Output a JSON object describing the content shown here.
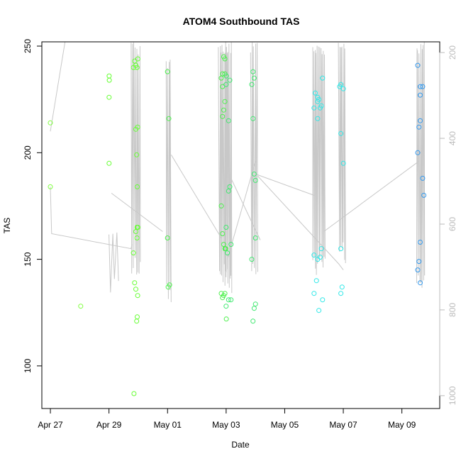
{
  "chart_data": {
    "type": "scatter",
    "title": "ATOM4 Southbound TAS",
    "xlabel": "Date",
    "ylabel": "TAS",
    "x_date_range": [
      "2023-04-26T17:00",
      "2023-05-10T07:00"
    ],
    "x_ticks": [
      {
        "date": "2023-04-27T00:00",
        "label": "Apr 27"
      },
      {
        "date": "2023-04-29T00:00",
        "label": "Apr 29"
      },
      {
        "date": "2023-05-01T00:00",
        "label": "May 01"
      },
      {
        "date": "2023-05-03T00:00",
        "label": "May 03"
      },
      {
        "date": "2023-05-05T00:00",
        "label": "May 05"
      },
      {
        "date": "2023-05-07T00:00",
        "label": "May 07"
      },
      {
        "date": "2023-05-09T00:00",
        "label": "May 09"
      }
    ],
    "ylim": [
      80,
      252
    ],
    "y_ticks": [
      100,
      150,
      200,
      250
    ],
    "secondary_axis": {
      "side": "right",
      "color": "#bbbbbb",
      "range": [
        1030,
        175
      ],
      "ticks": [
        200,
        400,
        600,
        800,
        1000
      ]
    },
    "line_color": "#c8c8c8",
    "point_style": "open-circle",
    "series": [
      {
        "color": "#80ff40",
        "points": [
          [
            "2023-04-27T00:00",
            214
          ],
          [
            "2023-04-27T00:00",
            184
          ],
          [
            "2023-04-28T00:50",
            128
          ]
        ]
      },
      {
        "color": "#66ff33",
        "points": [
          [
            "2023-04-29T00:10",
            236
          ],
          [
            "2023-04-29T00:15",
            234
          ],
          [
            "2023-04-29T00:05",
            226
          ],
          [
            "2023-04-29T00:05",
            195
          ],
          [
            "2023-04-29T20:00",
            240
          ],
          [
            "2023-04-29T21:00",
            243
          ],
          [
            "2023-04-29T22:00",
            241
          ],
          [
            "2023-04-29T23:00",
            240
          ],
          [
            "2023-04-29T23:40",
            244
          ],
          [
            "2023-04-29T22:00",
            211
          ],
          [
            "2023-04-29T23:30",
            212
          ],
          [
            "2023-04-29T22:40",
            199
          ],
          [
            "2023-04-29T23:10",
            184
          ],
          [
            "2023-04-29T22:00",
            163
          ],
          [
            "2023-04-29T23:00",
            165
          ],
          [
            "2023-04-29T23:40",
            165
          ],
          [
            "2023-04-29T23:00",
            160
          ],
          [
            "2023-04-29T20:00",
            153
          ],
          [
            "2023-04-29T21:00",
            139
          ],
          [
            "2023-04-29T22:00",
            136
          ],
          [
            "2023-04-29T23:30",
            133
          ],
          [
            "2023-04-29T22:40",
            121
          ],
          [
            "2023-04-29T23:10",
            123
          ],
          [
            "2023-04-29T20:30",
            87
          ]
        ]
      },
      {
        "color": "#4cf04c",
        "points": [
          [
            "2023-05-01T00:00",
            238
          ],
          [
            "2023-05-01T01:00",
            216
          ],
          [
            "2023-05-01T00:00",
            160
          ],
          [
            "2023-05-01T00:30",
            137
          ],
          [
            "2023-05-01T01:40",
            138
          ],
          [
            "2023-05-02T20:00",
            235
          ],
          [
            "2023-05-02T21:00",
            237
          ],
          [
            "2023-05-02T23:00",
            237
          ],
          [
            "2023-05-02T22:00",
            245
          ],
          [
            "2023-05-02T23:00",
            244
          ],
          [
            "2023-05-02T21:00",
            231
          ],
          [
            "2023-05-02T22:00",
            220
          ],
          [
            "2023-05-02T23:00",
            224
          ],
          [
            "2023-05-02T21:00",
            217
          ],
          [
            "2023-05-02T20:00",
            175
          ],
          [
            "2023-05-02T21:00",
            162
          ],
          [
            "2023-05-02T22:00",
            157
          ],
          [
            "2023-05-02T23:00",
            155
          ],
          [
            "2023-05-02T23:40",
            155
          ],
          [
            "2023-05-02T20:00",
            134
          ],
          [
            "2023-05-02T21:00",
            132
          ],
          [
            "2023-05-02T22:00",
            133
          ],
          [
            "2023-05-02T23:00",
            134
          ],
          [
            "2023-05-03T00:10",
            122
          ]
        ]
      },
      {
        "color": "#40e870",
        "points": [
          [
            "2023-05-03T00:10",
            236
          ],
          [
            "2023-05-03T00:00",
            232
          ],
          [
            "2023-05-03T03:00",
            234
          ],
          [
            "2023-05-03T02:00",
            215
          ],
          [
            "2023-05-03T03:00",
            184
          ],
          [
            "2023-05-03T02:00",
            182
          ],
          [
            "2023-05-03T00:00",
            165
          ],
          [
            "2023-05-03T04:00",
            157
          ],
          [
            "2023-05-03T01:00",
            153
          ],
          [
            "2023-05-03T02:00",
            131
          ],
          [
            "2023-05-03T04:00",
            131
          ],
          [
            "2023-05-03T00:00",
            128
          ],
          [
            "2023-05-03T22:00",
            238
          ],
          [
            "2023-05-03T23:00",
            235
          ],
          [
            "2023-05-03T21:00",
            232
          ],
          [
            "2023-05-03T22:00",
            216
          ],
          [
            "2023-05-03T23:00",
            190
          ],
          [
            "2023-05-04T00:00",
            187
          ],
          [
            "2023-05-04T00:00",
            160
          ],
          [
            "2023-05-03T21:00",
            150
          ],
          [
            "2023-05-04T00:00",
            129
          ],
          [
            "2023-05-03T23:00",
            127
          ],
          [
            "2023-05-03T22:00",
            121
          ]
        ]
      },
      {
        "color": "#30e8e8",
        "points": [
          [
            "2023-05-06T01:00",
            228
          ],
          [
            "2023-05-06T03:00",
            226
          ],
          [
            "2023-05-06T04:00",
            225
          ],
          [
            "2023-05-06T03:00",
            224
          ],
          [
            "2023-05-06T06:00",
            222
          ],
          [
            "2023-05-06T00:00",
            221
          ],
          [
            "2023-05-06T05:00",
            221
          ],
          [
            "2023-05-06T03:00",
            216
          ],
          [
            "2023-05-06T07:00",
            235
          ],
          [
            "2023-05-06T00:00",
            152
          ],
          [
            "2023-05-06T03:00",
            150
          ],
          [
            "2023-05-06T05:00",
            151
          ],
          [
            "2023-05-06T06:00",
            155
          ],
          [
            "2023-05-06T02:00",
            140
          ],
          [
            "2023-05-06T00:00",
            134
          ],
          [
            "2023-05-06T07:00",
            131
          ],
          [
            "2023-05-06T04:00",
            126
          ],
          [
            "2023-05-06T21:00",
            231
          ],
          [
            "2023-05-06T22:00",
            232
          ],
          [
            "2023-05-07T00:00",
            230
          ],
          [
            "2023-05-06T22:00",
            209
          ],
          [
            "2023-05-07T00:00",
            195
          ],
          [
            "2023-05-06T22:00",
            155
          ],
          [
            "2023-05-06T23:00",
            137
          ],
          [
            "2023-05-06T22:00",
            134
          ]
        ]
      },
      {
        "color": "#3399ee",
        "points": [
          [
            "2023-05-09T13:00",
            241
          ],
          [
            "2023-05-09T15:00",
            231
          ],
          [
            "2023-05-09T17:00",
            231
          ],
          [
            "2023-05-09T15:00",
            227
          ],
          [
            "2023-05-09T15:00",
            215
          ],
          [
            "2023-05-09T14:00",
            212
          ],
          [
            "2023-05-09T13:00",
            200
          ],
          [
            "2023-05-09T17:00",
            188
          ],
          [
            "2023-05-09T18:00",
            180
          ],
          [
            "2023-05-09T15:00",
            158
          ],
          [
            "2023-05-09T14:00",
            149
          ],
          [
            "2023-05-09T13:00",
            145
          ],
          [
            "2023-05-09T15:00",
            139
          ]
        ]
      }
    ],
    "lines": [
      [
        "2023-04-27T00:00",
        184,
        "2023-04-27T01:00",
        162,
        "2023-04-29T18:00",
        155,
        "2023-04-29T19:00",
        157
      ],
      [
        "2023-04-27T00:00",
        210,
        "2023-04-27T12:00",
        252
      ],
      [
        "2023-04-29T02:00",
        181,
        "2023-04-30T20:00",
        163
      ],
      [
        "2023-05-01T03:00",
        199,
        "2023-05-02T20:00",
        160
      ],
      [
        "2023-05-03T04:00",
        188,
        "2023-05-04T04:00",
        159
      ],
      [
        "2023-05-04T02:00",
        189,
        "2023-05-06T20:00",
        148,
        "2023-05-07T00:00",
        145
      ],
      [
        "2023-05-06T08:00",
        163,
        "2023-05-09T14:00",
        196
      ],
      [
        "2023-05-04T00:00",
        190,
        "2023-05-06T00:00",
        180
      ],
      [
        "2023-05-03T01:00",
        150,
        "2023-05-04T00:00",
        196
      ]
    ],
    "line_bursts": [
      {
        "t0": "2023-04-29T00:00",
        "t1": "2023-04-29T08:00",
        "min": 132,
        "max": 165,
        "n": 6
      },
      {
        "t0": "2023-04-29T18:00",
        "t1": "2023-04-30T02:00",
        "min": 141,
        "max": 252,
        "n": 14
      },
      {
        "t0": "2023-04-30T23:00",
        "t1": "2023-05-01T03:00",
        "min": 129,
        "max": 245,
        "n": 8
      },
      {
        "t0": "2023-05-02T18:00",
        "t1": "2023-05-03T01:00",
        "min": 138,
        "max": 252,
        "n": 16
      },
      {
        "t0": "2023-05-02T23:00",
        "t1": "2023-05-03T05:00",
        "min": 134,
        "max": 252,
        "n": 14
      },
      {
        "t0": "2023-05-03T20:00",
        "t1": "2023-05-04T02:00",
        "min": 143,
        "max": 252,
        "n": 10
      },
      {
        "t0": "2023-05-05T23:00",
        "t1": "2023-05-06T09:00",
        "min": 142,
        "max": 252,
        "n": 22
      },
      {
        "t0": "2023-05-06T20:00",
        "t1": "2023-05-07T02:00",
        "min": 148,
        "max": 252,
        "n": 12
      },
      {
        "t0": "2023-05-09T12:00",
        "t1": "2023-05-09T19:00",
        "min": 135,
        "max": 252,
        "n": 14
      }
    ]
  }
}
